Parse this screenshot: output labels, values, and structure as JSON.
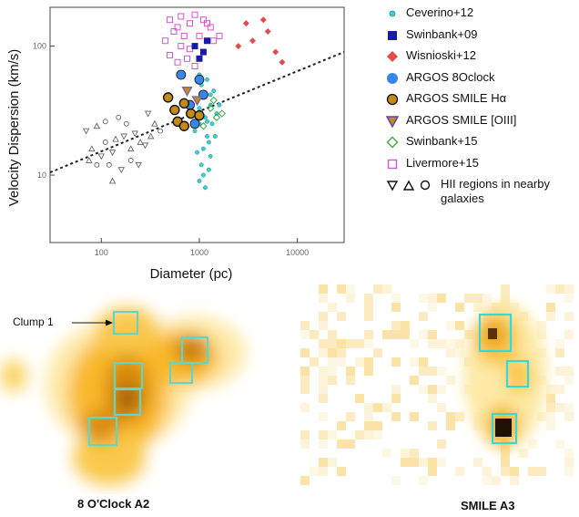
{
  "chart_data": [
    {
      "type": "scatter",
      "title": "",
      "xlabel": "Diameter (pc)",
      "ylabel": "Velocity Dispersion (km/s)",
      "xscale": "log",
      "yscale": "log",
      "xlim": [
        30,
        30000
      ],
      "ylim": [
        3,
        200
      ],
      "xticks": [
        {
          "v": 100,
          "label": "100"
        },
        {
          "v": 1000,
          "label": "1000"
        },
        {
          "v": 10000,
          "label": "10000"
        }
      ],
      "yticks": [
        {
          "v": 10,
          "label": "10"
        },
        {
          "v": 100,
          "label": "100"
        }
      ],
      "grid": false,
      "legend_position": "right",
      "fit_line": {
        "x": [
          30,
          30000
        ],
        "y": [
          10.5,
          90
        ]
      },
      "series": [
        {
          "name": "Ceverino+12",
          "marker": "circle-small",
          "color": "#3ecfcf",
          "points": [
            [
              900,
              30
            ],
            [
              1000,
              25
            ],
            [
              1100,
              40
            ],
            [
              1200,
              20
            ],
            [
              1300,
              35
            ],
            [
              950,
              15
            ],
            [
              1050,
              12
            ],
            [
              1150,
              28
            ],
            [
              1250,
              18
            ],
            [
              1400,
              45
            ],
            [
              1000,
              9
            ],
            [
              1100,
              10
            ],
            [
              900,
              22
            ],
            [
              1300,
              14
            ],
            [
              1500,
              30
            ],
            [
              1200,
              55
            ],
            [
              1000,
              60
            ],
            [
              1100,
              16
            ],
            [
              1350,
              25
            ],
            [
              1450,
              20
            ],
            [
              950,
              38
            ],
            [
              1250,
              11
            ],
            [
              1050,
              50
            ],
            [
              1600,
              35
            ],
            [
              1150,
              8
            ],
            [
              1000,
              33
            ],
            [
              1300,
              42
            ],
            [
              1200,
              26
            ]
          ]
        },
        {
          "name": "Swinbank+09",
          "marker": "square",
          "color": "#1a1aa8",
          "points": [
            [
              900,
              100
            ],
            [
              1100,
              90
            ],
            [
              1000,
              80
            ],
            [
              1200,
              110
            ]
          ]
        },
        {
          "name": "Wisnioski+12",
          "marker": "diamond",
          "color": "#e84a4a",
          "points": [
            [
              3000,
              150
            ],
            [
              4500,
              160
            ],
            [
              3500,
              110
            ],
            [
              6000,
              90
            ],
            [
              5000,
              130
            ],
            [
              2500,
              100
            ],
            [
              7000,
              75
            ]
          ]
        },
        {
          "name": "ARGOS 8Oclock",
          "marker": "circle",
          "color": "#3a86e8",
          "points": [
            [
              650,
              60
            ],
            [
              800,
              35
            ],
            [
              1000,
              55
            ],
            [
              1100,
              42
            ],
            [
              900,
              25
            ]
          ]
        },
        {
          "name": "ARGOS SMILE Hα",
          "marker": "circle",
          "color": "#c48a18",
          "points": [
            [
              480,
              40
            ],
            [
              560,
              32
            ],
            [
              700,
              36
            ],
            [
              820,
              30
            ],
            [
              600,
              26
            ],
            [
              1000,
              29
            ],
            [
              700,
              24
            ]
          ]
        },
        {
          "name": "ARGOS SMILE [OIII]",
          "marker": "triangle-down",
          "color": "#7060c8",
          "points": [
            [
              750,
              45
            ],
            [
              950,
              38
            ]
          ]
        },
        {
          "name": "Swinbank+15",
          "marker": "diamond-open",
          "color": "#3aa83a",
          "points": [
            [
              1300,
              33
            ],
            [
              1500,
              28
            ],
            [
              1100,
              24
            ],
            [
              1400,
              38
            ],
            [
              1700,
              30
            ]
          ]
        },
        {
          "name": "Livermore+15",
          "marker": "square-open",
          "color": "#d255d2",
          "points": [
            [
              500,
              160
            ],
            [
              650,
              170
            ],
            [
              600,
              140
            ],
            [
              800,
              150
            ],
            [
              900,
              175
            ],
            [
              700,
              120
            ],
            [
              550,
              130
            ],
            [
              1100,
              160
            ],
            [
              1300,
              140
            ],
            [
              1000,
              120
            ],
            [
              450,
              110
            ],
            [
              800,
              95
            ],
            [
              650,
              100
            ],
            [
              1400,
              110
            ],
            [
              1200,
              150
            ],
            [
              500,
              85
            ],
            [
              900,
              70
            ],
            [
              1600,
              120
            ],
            [
              600,
              75
            ],
            [
              750,
              80
            ]
          ]
        },
        {
          "name": "HII regions in nearby galaxies",
          "marker": "open-mixed",
          "color": "#555555",
          "points": [
            [
              70,
              22
            ],
            [
              90,
              24
            ],
            [
              110,
              18
            ],
            [
              130,
              15
            ],
            [
              80,
              16
            ],
            [
              150,
              28
            ],
            [
              170,
              20
            ],
            [
              200,
              16
            ],
            [
              120,
              12
            ],
            [
              100,
              14
            ],
            [
              140,
              19
            ],
            [
              180,
              25
            ],
            [
              220,
              21
            ],
            [
              250,
              18
            ],
            [
              90,
              12
            ],
            [
              300,
              30
            ],
            [
              350,
              25
            ],
            [
              400,
              22
            ],
            [
              160,
              11
            ],
            [
              130,
              9
            ],
            [
              200,
              13
            ],
            [
              280,
              17
            ],
            [
              75,
              13
            ],
            [
              110,
              26
            ],
            [
              240,
              12
            ],
            [
              320,
              20
            ]
          ]
        }
      ],
      "hii_legend_symbols": [
        "▽",
        "△",
        "○"
      ],
      "hii_legend_label": "HII regions in nearby galaxies"
    }
  ],
  "maps": {
    "left": {
      "label": "8 O'Clock A2",
      "annotation": "Clump 1",
      "box_color": "#5fd6c9"
    },
    "right": {
      "label": "SMILE A3",
      "box_color": "#36d9d9"
    }
  }
}
